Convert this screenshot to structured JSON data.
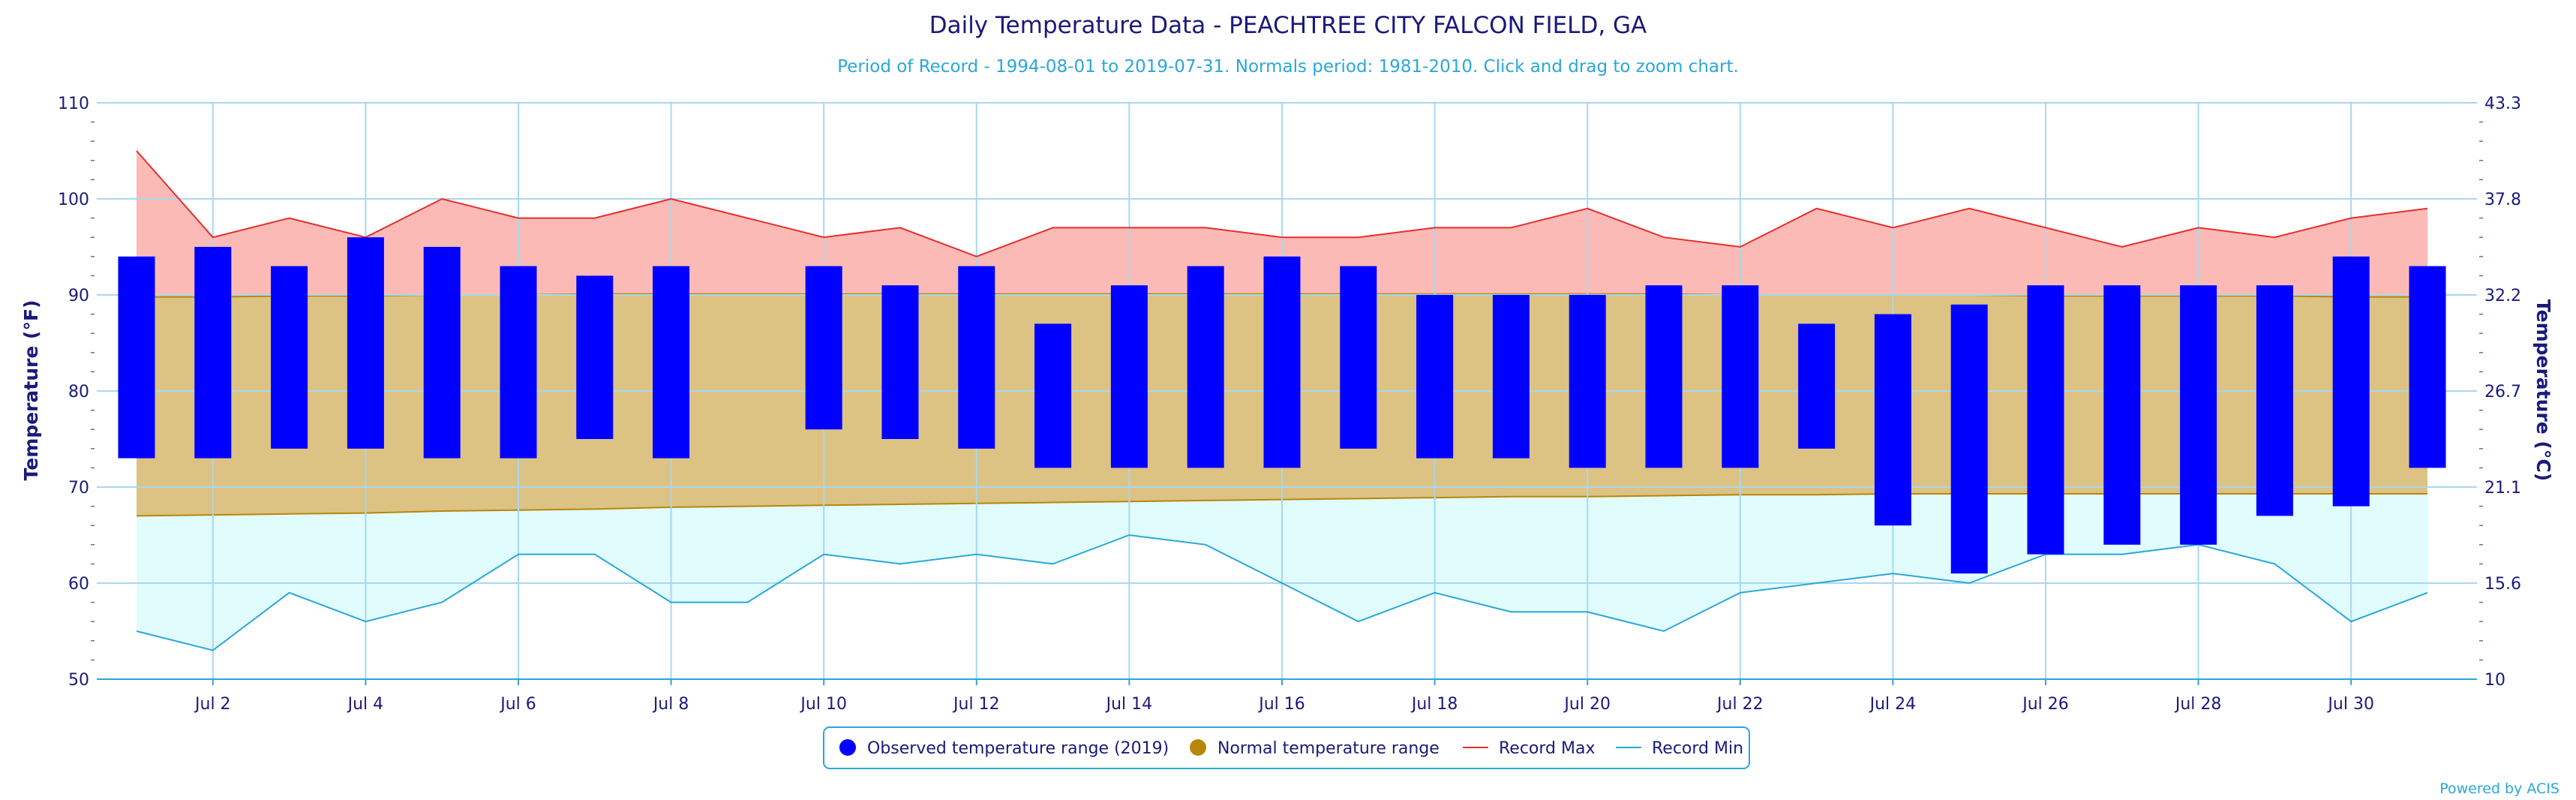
{
  "chart_data": {
    "type": "bar",
    "title": "Daily Temperature Data - PEACHTREE CITY FALCON FIELD, GA",
    "subtitle": "Period of Record - 1994-08-01 to 2019-07-31. Normals period: 1981-2010. Click and drag to zoom chart.",
    "ylabel_left": "Temperature (°F)",
    "ylabel_right": "Temperature (°C)",
    "ylim": [
      50,
      110
    ],
    "y_ticks_f": [
      50,
      60,
      70,
      80,
      90,
      100,
      110
    ],
    "y_ticks_c": [
      "10",
      "15.6",
      "21.1",
      "26.7",
      "32.2",
      "37.8",
      "43.3"
    ],
    "x_tick_labels": [
      "Jul 2",
      "Jul 4",
      "Jul 6",
      "Jul 8",
      "Jul 10",
      "Jul 12",
      "Jul 14",
      "Jul 16",
      "Jul 18",
      "Jul 20",
      "Jul 22",
      "Jul 24",
      "Jul 26",
      "Jul 28",
      "Jul 30"
    ],
    "x_tick_days": [
      2,
      4,
      6,
      8,
      10,
      12,
      14,
      16,
      18,
      20,
      22,
      24,
      26,
      28,
      30
    ],
    "days": [
      1,
      2,
      3,
      4,
      5,
      6,
      7,
      8,
      9,
      10,
      11,
      12,
      13,
      14,
      15,
      16,
      17,
      18,
      19,
      20,
      21,
      22,
      23,
      24,
      25,
      26,
      27,
      28,
      29,
      30,
      31
    ],
    "grid": true,
    "legend_position": "bottom-center",
    "series": [
      {
        "name": "Observed temperature range (2019)",
        "color": "#0000ff",
        "low": [
          73,
          73,
          74,
          74,
          73,
          73,
          75,
          73,
          null,
          76,
          75,
          74,
          72,
          72,
          72,
          72,
          74,
          73,
          73,
          72,
          72,
          72,
          74,
          66,
          61,
          63,
          64,
          64,
          67,
          68,
          72
        ],
        "high": [
          94,
          95,
          93,
          96,
          95,
          93,
          92,
          93,
          null,
          93,
          91,
          93,
          87,
          91,
          93,
          94,
          93,
          90,
          90,
          90,
          91,
          91,
          87,
          88,
          89,
          91,
          91,
          91,
          91,
          94,
          93
        ]
      },
      {
        "name": "Normal temperature range",
        "color": "#b8860b",
        "low": [
          67,
          67.1,
          67.2,
          67.3,
          67.5,
          67.6,
          67.7,
          67.9,
          68,
          68.1,
          68.2,
          68.3,
          68.4,
          68.5,
          68.6,
          68.7,
          68.8,
          68.9,
          69,
          69,
          69.1,
          69.2,
          69.2,
          69.3,
          69.3,
          69.3,
          69.3,
          69.3,
          69.3,
          69.3,
          69.3
        ],
        "high": [
          89.8,
          89.8,
          89.9,
          89.9,
          90,
          90,
          90.1,
          90.1,
          90.1,
          90.1,
          90.1,
          90.1,
          90.1,
          90.1,
          90.1,
          90.1,
          90.1,
          90.1,
          90.1,
          90.1,
          90.1,
          90,
          90,
          90,
          90,
          89.9,
          89.9,
          89.9,
          89.9,
          89.8,
          89.8
        ]
      },
      {
        "name": "Record Max",
        "color": "#e62e2e",
        "values": [
          105,
          96,
          98,
          96,
          100,
          98,
          98,
          100,
          98,
          96,
          97,
          94,
          97,
          97,
          97,
          96,
          96,
          97,
          97,
          99,
          96,
          95,
          99,
          97,
          99,
          97,
          95,
          97,
          96,
          98,
          99
        ]
      },
      {
        "name": "Record Min",
        "color": "#2aa7d8",
        "values": [
          55,
          53,
          59,
          56,
          58,
          63,
          63,
          58,
          58,
          63,
          62,
          63,
          62,
          65,
          64,
          60,
          56,
          59,
          57,
          57,
          55,
          59,
          60,
          61,
          60,
          63,
          63,
          64,
          62,
          56,
          59
        ]
      }
    ],
    "credit": "Powered by ACIS"
  }
}
